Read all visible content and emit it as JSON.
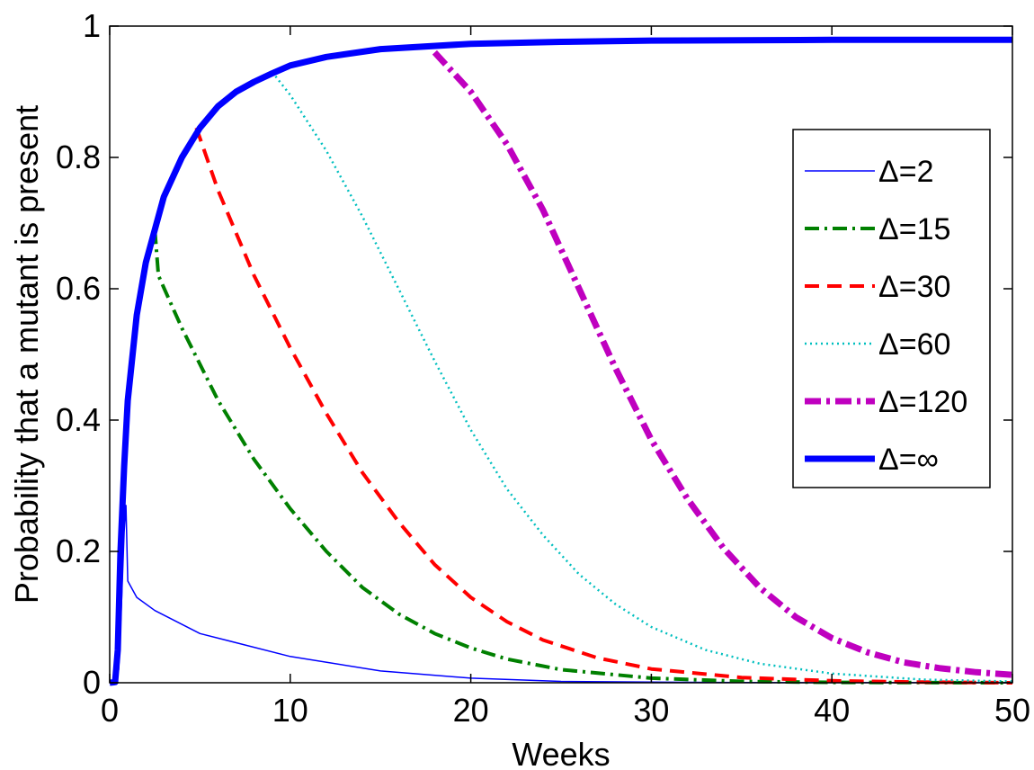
{
  "chart_data": {
    "type": "line",
    "title": "",
    "xlabel": "Weeks",
    "ylabel": "Probability that a mutant is present",
    "xlim": [
      0,
      50
    ],
    "ylim": [
      0,
      1
    ],
    "xticks": [
      "0",
      "10",
      "20",
      "30",
      "40",
      "50"
    ],
    "yticks": [
      "0",
      "0.2",
      "0.4",
      "0.6",
      "0.8",
      "1"
    ],
    "grid": false,
    "legend_position": "right",
    "series": [
      {
        "name": "Δ=2",
        "color": "#0000ff",
        "style": "solid-thin",
        "points": [
          [
            0,
            0
          ],
          [
            0.3,
            0.001
          ],
          [
            0.5,
            0.02
          ],
          [
            0.65,
            0.12
          ],
          [
            0.8,
            0.23
          ],
          [
            0.9,
            0.27
          ],
          [
            1.0,
            0.155
          ],
          [
            1.5,
            0.13
          ],
          [
            2.5,
            0.11
          ],
          [
            5,
            0.075
          ],
          [
            10,
            0.04
          ],
          [
            15,
            0.018
          ],
          [
            20,
            0.007
          ],
          [
            25,
            0.002
          ],
          [
            30,
            0.001
          ],
          [
            35,
            0.0003
          ],
          [
            50,
            0
          ]
        ]
      },
      {
        "name": "Δ=15",
        "color": "#008000",
        "style": "dashdot",
        "points": [
          [
            2.5,
            0.69
          ],
          [
            2.7,
            0.62
          ],
          [
            4,
            0.54
          ],
          [
            6,
            0.43
          ],
          [
            8,
            0.34
          ],
          [
            10,
            0.265
          ],
          [
            12,
            0.2
          ],
          [
            14,
            0.145
          ],
          [
            16,
            0.105
          ],
          [
            18,
            0.075
          ],
          [
            20,
            0.053
          ],
          [
            22,
            0.036
          ],
          [
            25,
            0.02
          ],
          [
            30,
            0.007
          ],
          [
            35,
            0.002
          ],
          [
            40,
            0.0005
          ],
          [
            50,
            0
          ]
        ]
      },
      {
        "name": "Δ=30",
        "color": "#ff0000",
        "style": "dashed",
        "points": [
          [
            4.8,
            0.845
          ],
          [
            6,
            0.75
          ],
          [
            8,
            0.62
          ],
          [
            10,
            0.51
          ],
          [
            12,
            0.41
          ],
          [
            14,
            0.32
          ],
          [
            16,
            0.245
          ],
          [
            18,
            0.18
          ],
          [
            20,
            0.13
          ],
          [
            22,
            0.093
          ],
          [
            24,
            0.065
          ],
          [
            27,
            0.038
          ],
          [
            30,
            0.021
          ],
          [
            35,
            0.008
          ],
          [
            40,
            0.003
          ],
          [
            45,
            0.001
          ],
          [
            50,
            0
          ]
        ]
      },
      {
        "name": "Δ=60",
        "color": "#00bfbf",
        "style": "dotted",
        "points": [
          [
            9,
            0.93
          ],
          [
            10,
            0.895
          ],
          [
            12,
            0.81
          ],
          [
            14,
            0.71
          ],
          [
            16,
            0.6
          ],
          [
            18,
            0.49
          ],
          [
            20,
            0.385
          ],
          [
            22,
            0.295
          ],
          [
            24,
            0.225
          ],
          [
            26,
            0.165
          ],
          [
            28,
            0.12
          ],
          [
            30,
            0.085
          ],
          [
            33,
            0.05
          ],
          [
            36,
            0.029
          ],
          [
            40,
            0.014
          ],
          [
            45,
            0.005
          ],
          [
            50,
            0.002
          ]
        ]
      },
      {
        "name": "Δ=120",
        "color": "#bf00bf",
        "style": "dashdot-thick",
        "points": [
          [
            18,
            0.96
          ],
          [
            20,
            0.9
          ],
          [
            22,
            0.82
          ],
          [
            24,
            0.72
          ],
          [
            26,
            0.6
          ],
          [
            28,
            0.48
          ],
          [
            30,
            0.37
          ],
          [
            32,
            0.28
          ],
          [
            34,
            0.205
          ],
          [
            36,
            0.145
          ],
          [
            38,
            0.1
          ],
          [
            40,
            0.068
          ],
          [
            42,
            0.046
          ],
          [
            44,
            0.031
          ],
          [
            46,
            0.022
          ],
          [
            48,
            0.016
          ],
          [
            50,
            0.012
          ]
        ]
      },
      {
        "name": "Δ=∞",
        "color": "#0000ff",
        "style": "solid-thick",
        "points": [
          [
            0,
            0
          ],
          [
            0.3,
            0.001
          ],
          [
            0.45,
            0.05
          ],
          [
            0.6,
            0.2
          ],
          [
            0.8,
            0.33
          ],
          [
            1,
            0.43
          ],
          [
            1.5,
            0.56
          ],
          [
            2,
            0.64
          ],
          [
            2.5,
            0.69
          ],
          [
            3,
            0.74
          ],
          [
            4,
            0.8
          ],
          [
            5,
            0.845
          ],
          [
            6,
            0.878
          ],
          [
            7,
            0.9
          ],
          [
            8,
            0.915
          ],
          [
            9,
            0.928
          ],
          [
            10,
            0.94
          ],
          [
            12,
            0.953
          ],
          [
            15,
            0.965
          ],
          [
            20,
            0.973
          ],
          [
            25,
            0.976
          ],
          [
            30,
            0.978
          ],
          [
            40,
            0.979
          ],
          [
            50,
            0.979
          ]
        ]
      }
    ]
  }
}
